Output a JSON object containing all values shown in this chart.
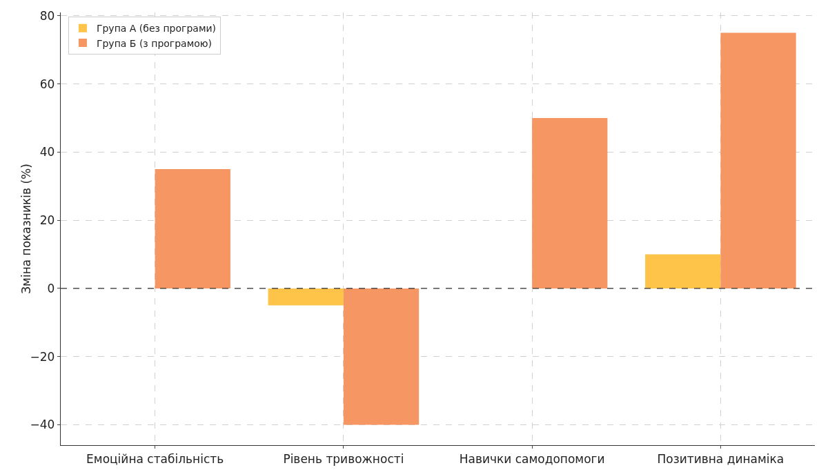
{
  "chart_data": {
    "type": "bar",
    "ylabel": "Зміна показників (%)",
    "categories": [
      "Емоційна стабільність",
      "Рівень тривожності",
      "Навички самодопомоги",
      "Позитивна динаміка"
    ],
    "series": [
      {
        "name": "Група А (без програми)",
        "color": "#fec44a",
        "values": [
          0,
          -5,
          0,
          10
        ]
      },
      {
        "name": "Група Б (з програмою)",
        "color": "#f59663",
        "values": [
          35,
          -40,
          50,
          75
        ]
      }
    ],
    "ylim": [
      -46,
      81
    ],
    "yticks": [
      {
        "value": -40,
        "label": "−40"
      },
      {
        "value": -20,
        "label": "−20"
      },
      0,
      20,
      40,
      60,
      80
    ],
    "ref_lines": [
      {
        "axis": "y",
        "value": 0,
        "color": "#333333",
        "line_style": "dashed"
      }
    ],
    "grid": true,
    "legend": "top left"
  }
}
